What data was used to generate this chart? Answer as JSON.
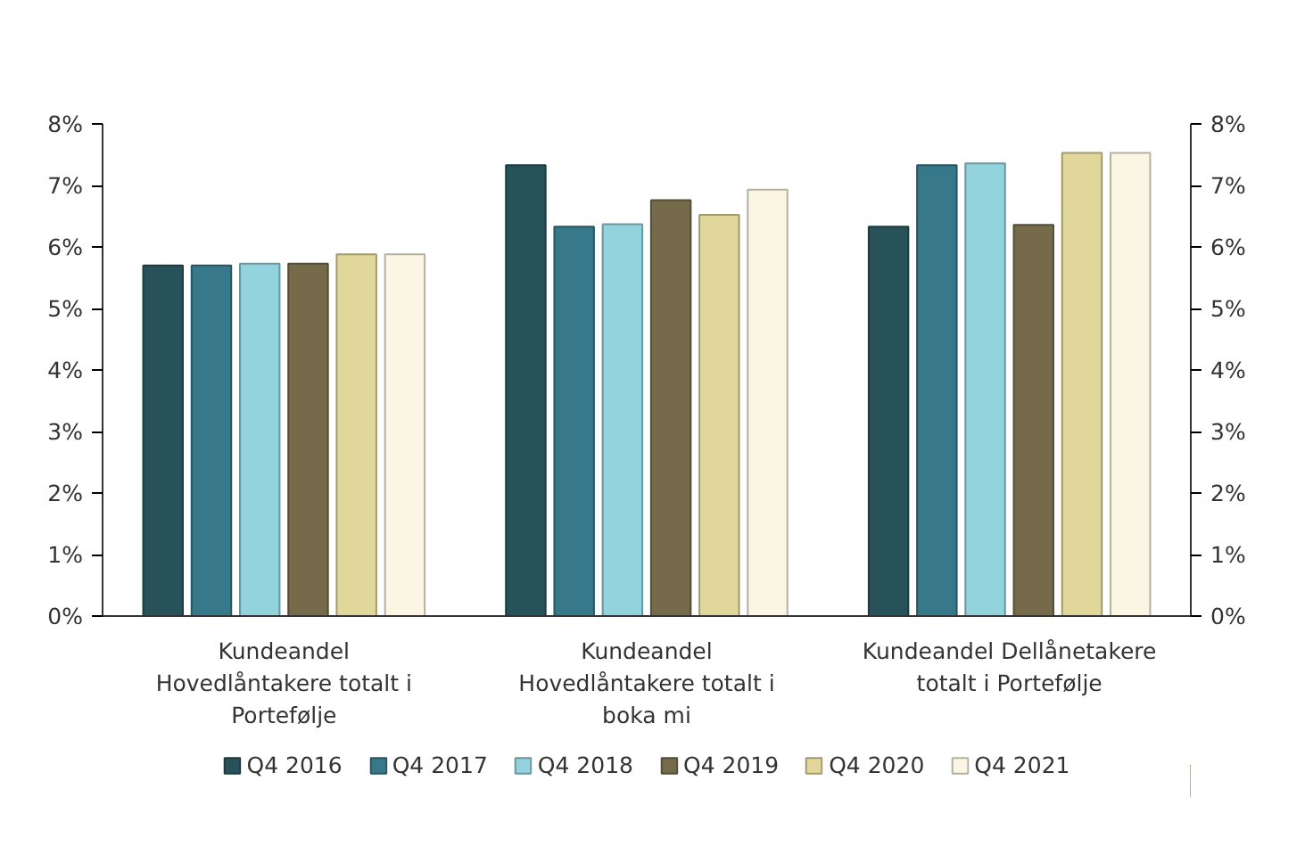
{
  "chart_data": {
    "type": "bar",
    "categories": [
      "Kundeandel Hovedlåntakere totalt i Portefølje",
      "Kundeandel Hovedlåntakere totalt i boka mi",
      "Kundeandel Dellånetakere totalt i Portefølje"
    ],
    "series": [
      {
        "name": "Q4 2016",
        "color": "#27525a",
        "values": [
          5.7,
          7.33,
          6.33
        ]
      },
      {
        "name": "Q4 2017",
        "color": "#37788a",
        "values": [
          5.7,
          6.33,
          7.33
        ]
      },
      {
        "name": "Q4 2018",
        "color": "#93d3dd",
        "values": [
          5.73,
          6.37,
          7.36
        ]
      },
      {
        "name": "Q4 2019",
        "color": "#756b4a",
        "values": [
          5.73,
          6.76,
          6.36
        ]
      },
      {
        "name": "Q4 2020",
        "color": "#e2d79b",
        "values": [
          5.88,
          6.52,
          7.53
        ]
      },
      {
        "name": "Q4 2021",
        "color": "#faf6e3",
        "values": [
          5.88,
          6.93,
          7.53
        ]
      }
    ],
    "ylim": [
      0,
      8
    ],
    "yticks": [
      {
        "value": 0,
        "label": "0%"
      },
      {
        "value": 1,
        "label": "1%"
      },
      {
        "value": 2,
        "label": "2%"
      },
      {
        "value": 3,
        "label": "3%"
      },
      {
        "value": 4,
        "label": "4%"
      },
      {
        "value": 5,
        "label": "5%"
      },
      {
        "value": 6,
        "label": "6%"
      },
      {
        "value": 7,
        "label": "7%"
      },
      {
        "value": 8,
        "label": "8%"
      }
    ],
    "y2lim": [
      0,
      8
    ],
    "y2ticks": [
      {
        "value": 0,
        "label": "0%"
      },
      {
        "value": 1,
        "label": "1%"
      },
      {
        "value": 2,
        "label": "2%"
      },
      {
        "value": 3,
        "label": "3%"
      },
      {
        "value": 4,
        "label": "4%"
      },
      {
        "value": 5,
        "label": "5%"
      },
      {
        "value": 6,
        "label": "6%"
      },
      {
        "value": 7,
        "label": "7%"
      },
      {
        "value": 8,
        "label": "8%"
      }
    ],
    "grid": false,
    "legend": "bottom"
  }
}
